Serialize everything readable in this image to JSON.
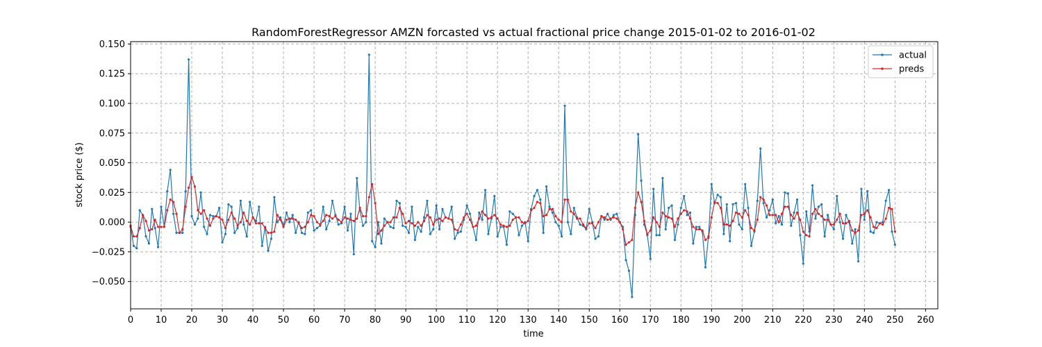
{
  "chart_data": {
    "type": "line",
    "title": "RandomForestRegressor AMZN forcasted vs actual fractional price change 2015-01-02 to 2016-01-02",
    "xlabel": "time",
    "ylabel": "stock price ($)",
    "xlim": [
      0,
      264
    ],
    "ylim": [
      -0.073,
      0.152
    ],
    "xticks": [
      0,
      10,
      20,
      30,
      40,
      50,
      60,
      70,
      80,
      90,
      100,
      110,
      120,
      130,
      140,
      150,
      160,
      170,
      180,
      190,
      200,
      210,
      220,
      230,
      240,
      250,
      260
    ],
    "yticks": [
      -0.05,
      -0.025,
      0.0,
      0.025,
      0.05,
      0.075,
      0.1,
      0.125,
      0.15
    ],
    "ytick_labels": [
      "−0.050",
      "−0.025",
      "0.000",
      "0.025",
      "0.050",
      "0.075",
      "0.100",
      "0.125",
      "0.150"
    ],
    "grid": true,
    "legend_position": "top-right",
    "series": [
      {
        "name": "actual",
        "color": "#1f77b4",
        "values": [
          -0.004,
          -0.02,
          -0.022,
          0.01,
          0.006,
          -0.012,
          -0.018,
          0.011,
          -0.005,
          -0.021,
          0.013,
          -0.004,
          0.026,
          0.044,
          0.007,
          -0.009,
          -0.009,
          -0.009,
          0.026,
          0.137,
          0.005,
          -0.002,
          0.003,
          0.025,
          -0.004,
          -0.01,
          0.006,
          0.005,
          0.005,
          0.012,
          -0.017,
          -0.01,
          0.015,
          0.013,
          -0.009,
          -0.005,
          0.018,
          -0.002,
          -0.012,
          0.017,
          0.004,
          0.001,
          0.013,
          -0.02,
          -0.004,
          -0.024,
          -0.014,
          0.021,
          0.0,
          0.004,
          -0.003,
          0.008,
          0.0,
          0.006,
          -0.009,
          0.0,
          -0.009,
          -0.01,
          0.008,
          0.01,
          -0.007,
          -0.005,
          -0.003,
          0.013,
          -0.006,
          0.001,
          0.018,
          0.006,
          -0.002,
          -0.001,
          0.013,
          -0.007,
          0.007,
          -0.027,
          0.037,
          0.01,
          -0.003,
          0.0,
          0.141,
          -0.016,
          -0.021,
          0.0,
          -0.018,
          0.003,
          0.0,
          -0.004,
          -0.005,
          0.018,
          0.016,
          -0.003,
          -0.004,
          -0.009,
          0.013,
          -0.015,
          -0.004,
          -0.008,
          0.004,
          0.018,
          -0.01,
          -0.006,
          0.014,
          -0.006,
          0.011,
          0.004,
          0.003,
          0.013,
          -0.014,
          -0.009,
          -0.008,
          0.002,
          0.014,
          0.007,
          -0.004,
          -0.015,
          0.008,
          0.002,
          0.027,
          -0.01,
          0.003,
          0.022,
          -0.012,
          -0.004,
          -0.004,
          -0.019,
          0.009,
          0.007,
          0.004,
          -0.011,
          -0.003,
          0.0,
          -0.016,
          0.011,
          0.022,
          0.027,
          0.019,
          -0.009,
          0.03,
          0.013,
          0.008,
          0.0,
          -0.003,
          -0.012,
          0.098,
          0.0,
          -0.01,
          0.012,
          0.004,
          -0.002,
          -0.003,
          -0.006,
          0.011,
          0.0,
          -0.014,
          -0.012,
          0.005,
          0.002,
          0.007,
          0.002,
          0.006,
          0.007,
          0.0,
          -0.004,
          -0.032,
          -0.041,
          -0.063,
          0.006,
          0.074,
          0.035,
          -0.002,
          -0.011,
          -0.031,
          0.028,
          -0.011,
          -0.011,
          0.037,
          -0.006,
          0.012,
          0.014,
          -0.015,
          -0.002,
          0.012,
          0.022,
          0.006,
          0.008,
          -0.018,
          -0.004,
          -0.004,
          -0.008,
          -0.038,
          -0.012,
          0.032,
          0.016,
          0.023,
          0.021,
          -0.01,
          0.015,
          -0.016,
          0.015,
          0.016,
          -0.002,
          -0.006,
          0.032,
          0.012,
          -0.02,
          -0.008,
          0.018,
          0.062,
          0.016,
          0.004,
          0.01,
          0.019,
          -0.001,
          0.005,
          -0.002,
          0.025,
          0.024,
          -0.003,
          0.008,
          0.019,
          -0.011,
          -0.035,
          0.009,
          -0.008,
          0.031,
          0.003,
          0.013,
          0.015,
          -0.012,
          0.006,
          -0.002,
          -0.006,
          0.022,
          0.0,
          -0.014,
          0.006,
          0.0,
          -0.018,
          -0.006,
          -0.033,
          0.028,
          0.002,
          0.026,
          -0.008,
          -0.009,
          0.0,
          -0.001,
          0.0,
          0.018,
          0.027,
          -0.008,
          -0.019
        ]
      },
      {
        "name": "preds",
        "color": "#d62728",
        "values": [
          -0.003,
          -0.012,
          -0.012,
          -0.005,
          0.006,
          0.001,
          -0.007,
          -0.006,
          0.002,
          -0.004,
          -0.004,
          -0.004,
          0.01,
          0.019,
          0.017,
          0.007,
          -0.009,
          -0.006,
          0.013,
          0.029,
          0.038,
          0.03,
          0.01,
          0.007,
          0.01,
          0.003,
          -0.003,
          0.003,
          0.005,
          0.004,
          0.002,
          -0.005,
          0.002,
          0.008,
          0.003,
          -0.003,
          0.0,
          0.008,
          0.001,
          -0.002,
          0.004,
          -0.001,
          -0.001,
          -0.001,
          -0.005,
          -0.009,
          -0.009,
          -0.008,
          0.006,
          0.002,
          -0.004,
          0.002,
          0.003,
          0.003,
          0.002,
          -0.001,
          -0.005,
          -0.004,
          0.0,
          0.006,
          0.005,
          0.0,
          -0.002,
          0.001,
          0.006,
          0.005,
          0.003,
          0.005,
          0.002,
          0.0,
          0.004,
          0.003,
          0.002,
          0.001,
          0.003,
          0.012,
          0.005,
          0.005,
          0.021,
          0.032,
          0.016,
          -0.01,
          -0.007,
          -0.003,
          0.0,
          0.0,
          0.004,
          0.004,
          0.012,
          0.007,
          -0.001,
          0.001,
          -0.001,
          -0.003,
          0.0,
          -0.003,
          0.001,
          0.006,
          0.004,
          -0.002,
          0.002,
          0.003,
          0.001,
          0.004,
          0.003,
          0.002,
          -0.006,
          -0.007,
          -0.002,
          0.004,
          0.007,
          0.002,
          -0.004,
          -0.003,
          0.003,
          0.009,
          0.006,
          0.003,
          0.004,
          0.006,
          0.003,
          -0.002,
          -0.003,
          -0.004,
          -0.003,
          0.002,
          0.004,
          0.004,
          0.0,
          -0.001,
          0.001,
          0.01,
          0.012,
          0.017,
          0.016,
          0.005,
          0.006,
          0.011,
          0.011,
          0.005,
          0.002,
          0.0,
          0.019,
          0.019,
          0.009,
          0.007,
          0.003,
          0.003,
          -0.002,
          -0.005,
          -0.001,
          -0.001,
          -0.005,
          0.0,
          0.005,
          0.004,
          0.002,
          0.003,
          0.004,
          0.003,
          0.0,
          -0.006,
          -0.019,
          -0.017,
          -0.015,
          0.012,
          0.025,
          0.017,
          0.001,
          -0.01,
          -0.007,
          0.004,
          0.0,
          -0.004,
          0.008,
          0.005,
          0.004,
          0.003,
          -0.004,
          0.003,
          0.007,
          0.01,
          0.009,
          0.003,
          -0.004,
          -0.006,
          -0.006,
          -0.007,
          -0.015,
          -0.013,
          0.004,
          0.017,
          0.016,
          0.012,
          -0.002,
          -0.002,
          -0.003,
          0.001,
          0.008,
          0.007,
          0.004,
          0.01,
          0.006,
          -0.005,
          -0.007,
          0.002,
          0.021,
          0.019,
          0.014,
          0.006,
          0.006,
          0.006,
          0.0,
          0.007,
          0.013,
          0.013,
          0.006,
          0.003,
          0.008,
          0.002,
          -0.008,
          -0.011,
          -0.012,
          0.007,
          0.011,
          0.007,
          0.005,
          0.002,
          0.002,
          -0.002,
          -0.002,
          0.002,
          0.007,
          -0.001,
          -0.001,
          0.001,
          -0.007,
          -0.009,
          -0.007,
          0.006,
          0.007,
          0.01,
          0.004,
          -0.004,
          -0.005,
          -0.001,
          -0.002,
          0.003,
          0.012,
          0.011,
          -0.008
        ]
      }
    ]
  }
}
